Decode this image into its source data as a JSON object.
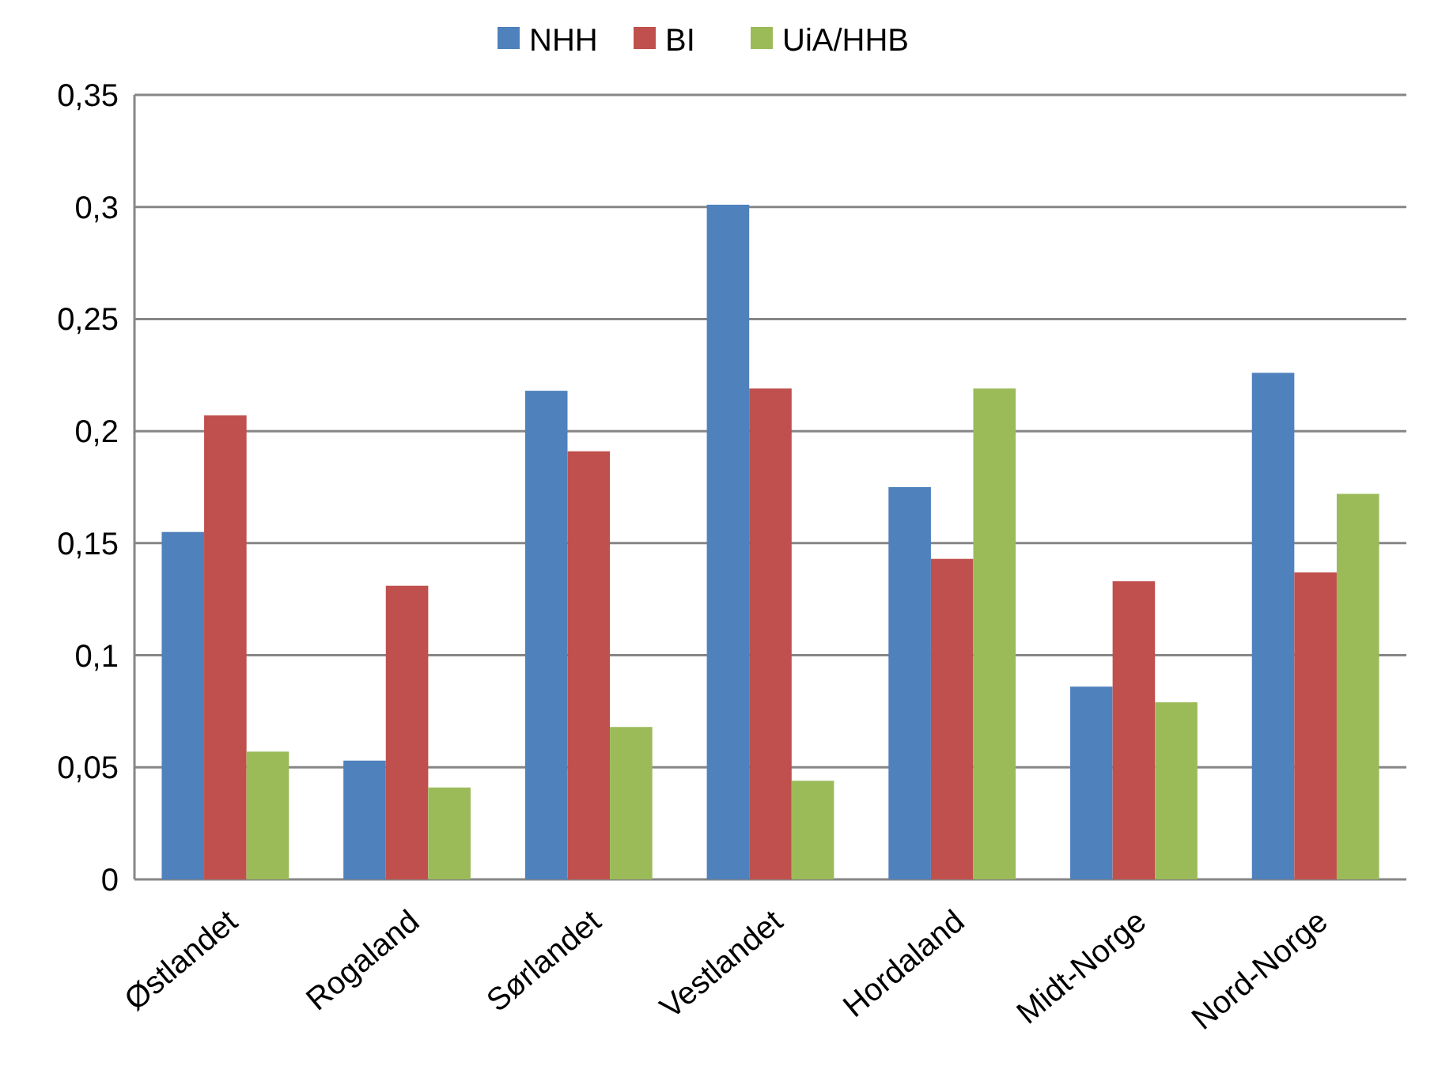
{
  "chart_data": {
    "type": "bar",
    "categories": [
      "Østlandet",
      "Rogaland",
      "Sørlandet",
      "Vestlandet",
      "Hordaland",
      "Midt-Norge",
      "Nord-Norge"
    ],
    "series": [
      {
        "name": "NHH",
        "color": "#4f81bd",
        "values": [
          0.155,
          0.053,
          0.218,
          0.301,
          0.175,
          0.086,
          0.226
        ]
      },
      {
        "name": "BI",
        "color": "#c0504d",
        "values": [
          0.207,
          0.131,
          0.191,
          0.219,
          0.143,
          0.133,
          0.137
        ]
      },
      {
        "name": "UiA/HHB",
        "color": "#9bbb59",
        "values": [
          0.057,
          0.041,
          0.068,
          0.044,
          0.219,
          0.079,
          0.172
        ]
      }
    ],
    "ylim": [
      0,
      0.35
    ],
    "yticks": [
      {
        "value": 0,
        "label": "0"
      },
      {
        "value": 0.05,
        "label": "0,05"
      },
      {
        "value": 0.1,
        "label": "0,1"
      },
      {
        "value": 0.15,
        "label": "0,15"
      },
      {
        "value": 0.2,
        "label": "0,2"
      },
      {
        "value": 0.25,
        "label": "0,25"
      },
      {
        "value": 0.3,
        "label": "0,3"
      },
      {
        "value": 0.35,
        "label": "0,35"
      }
    ],
    "grid": "y",
    "legend": "top"
  }
}
